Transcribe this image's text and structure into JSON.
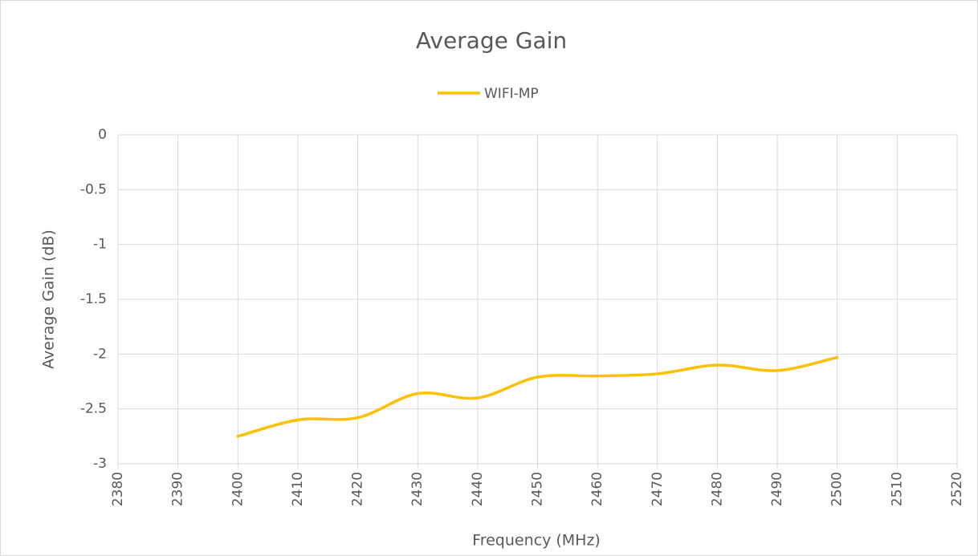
{
  "chart_data": {
    "type": "line",
    "title": "Average Gain",
    "x_label": "Frequency (MHz)",
    "y_label": "Average Gain (dB)",
    "x": [
      2400,
      2410,
      2420,
      2430,
      2440,
      2450,
      2460,
      2470,
      2480,
      2490,
      2500
    ],
    "series": [
      {
        "name": "WIFI-MP",
        "color": "#FFC000",
        "values": [
          -2.75,
          -2.6,
          -2.58,
          -2.36,
          -2.4,
          -2.21,
          -2.2,
          -2.18,
          -2.1,
          -2.15,
          -2.03
        ]
      }
    ],
    "xlim": [
      2380,
      2520
    ],
    "xticks": [
      2380,
      2390,
      2400,
      2410,
      2420,
      2430,
      2440,
      2450,
      2460,
      2470,
      2480,
      2490,
      2500,
      2510,
      2520
    ],
    "ylim": [
      -3,
      0
    ],
    "yticks": [
      0,
      -0.5,
      -1,
      -1.5,
      -2,
      -2.5,
      -3
    ],
    "grid": true,
    "smooth": true,
    "legend": "top"
  }
}
